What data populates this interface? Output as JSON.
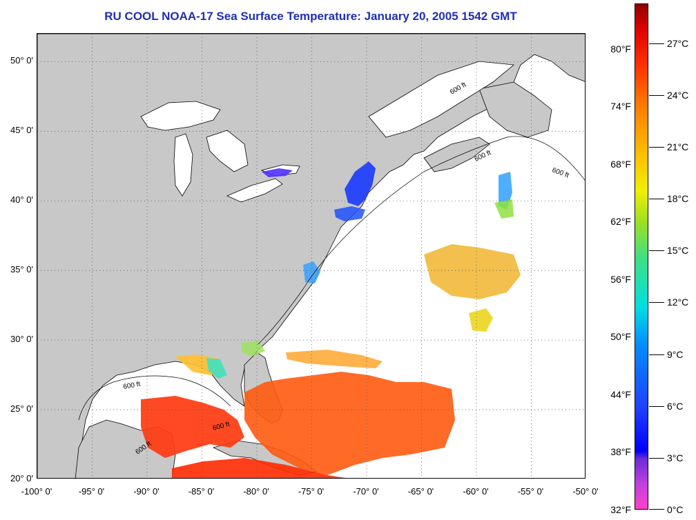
{
  "title": "RU COOL  NOAA-17  Sea Surface Temperature:  January 20, 2005 1542 GMT",
  "map": {
    "lon_range": [
      -100,
      -50
    ],
    "lat_range": [
      20,
      52
    ],
    "lat_labels": [
      "50° 0'",
      "45° 0'",
      "40° 0'",
      "35° 0'",
      "30° 0'",
      "25° 0'",
      "20° 0'"
    ],
    "lat_values": [
      50,
      45,
      40,
      35,
      30,
      25,
      20
    ],
    "lon_labels": [
      "-100° 0'",
      "-95° 0'",
      "-90° 0'",
      "-85° 0'",
      "-80° 0'",
      "-75° 0'",
      "-70° 0'",
      "-65° 0'",
      "-60° 0'",
      "-55° 0'",
      "-50° 0'"
    ],
    "lon_values": [
      -100,
      -95,
      -90,
      -85,
      -80,
      -75,
      -70,
      -65,
      -60,
      -55,
      -50
    ],
    "isobath_labels": [
      "600 ft",
      "600 ft",
      "600 ft",
      "600 ft",
      "600 ft",
      "600 ft"
    ],
    "colors": {
      "land": "#c8c8c8",
      "ocean_no_data": "#ffffff",
      "coastline": "#000000",
      "grid": "#555555"
    }
  },
  "colorbar": {
    "fahrenheit_labels": [
      "80°F",
      "74°F",
      "68°F",
      "62°F",
      "56°F",
      "50°F",
      "44°F",
      "38°F",
      "32°F"
    ],
    "celsius_labels": [
      "27°C",
      "24°C",
      "21°C",
      "18°C",
      "15°C",
      "12°C",
      "9°C",
      "6°C",
      "3°C",
      "0°C"
    ]
  }
}
